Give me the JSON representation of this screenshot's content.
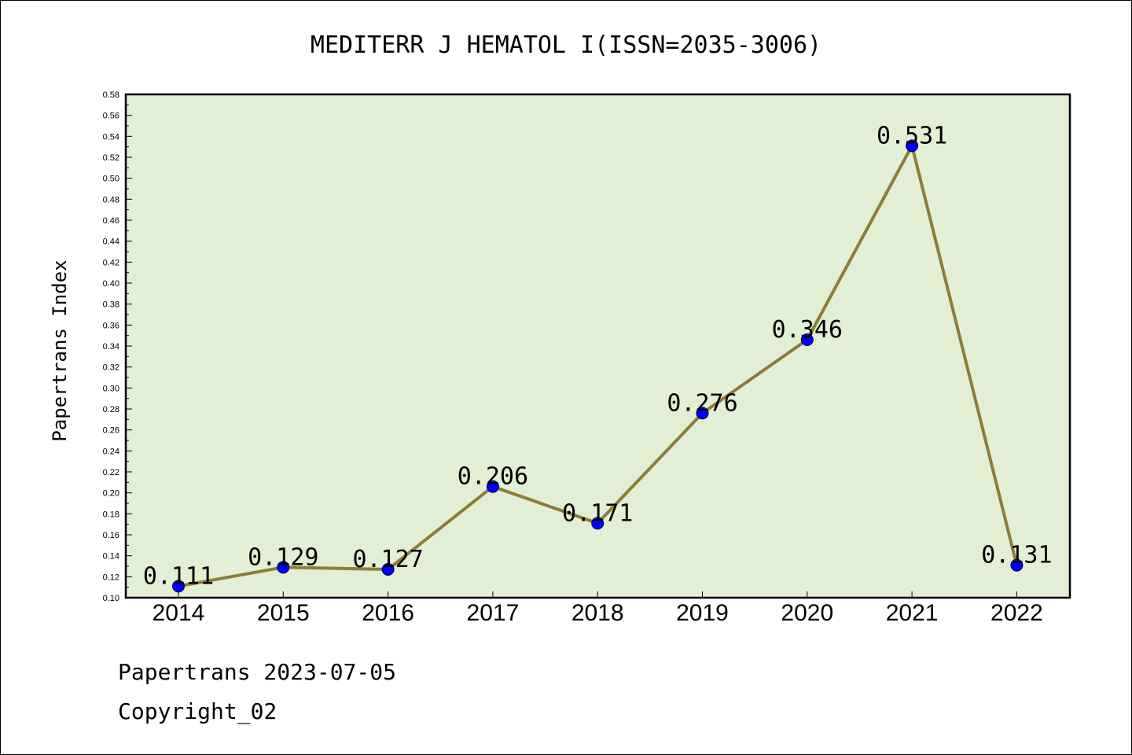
{
  "chart_data": {
    "type": "line",
    "title": "MEDITERR J HEMATOL I(ISSN=2035-3006)",
    "ylabel": "Papertrans Index",
    "xlabel": "",
    "categories": [
      "2014",
      "2015",
      "2016",
      "2017",
      "2018",
      "2019",
      "2020",
      "2021",
      "2022"
    ],
    "values": [
      0.111,
      0.129,
      0.127,
      0.206,
      0.171,
      0.276,
      0.346,
      0.531,
      0.131
    ],
    "data_labels": [
      "0.111",
      "0.129",
      "0.127",
      "0.206",
      "0.171",
      "0.276",
      "0.346",
      "0.531",
      "0.131"
    ],
    "ylim": [
      0.1,
      0.58
    ],
    "yticks": [
      "0.10",
      "0.12",
      "0.14",
      "0.16",
      "0.18",
      "0.20",
      "0.22",
      "0.24",
      "0.26",
      "0.28",
      "0.30",
      "0.32",
      "0.34",
      "0.36",
      "0.38",
      "0.40",
      "0.42",
      "0.44",
      "0.46",
      "0.48",
      "0.50",
      "0.52",
      "0.54",
      "0.56",
      "0.58"
    ],
    "grid": false,
    "colors": {
      "plot_background": "#e2efd4",
      "line": "#8b7d3a",
      "marker": "#0000ff"
    }
  },
  "footer": {
    "line1": "Papertrans 2023-07-05",
    "line2": "Copyright_02"
  }
}
